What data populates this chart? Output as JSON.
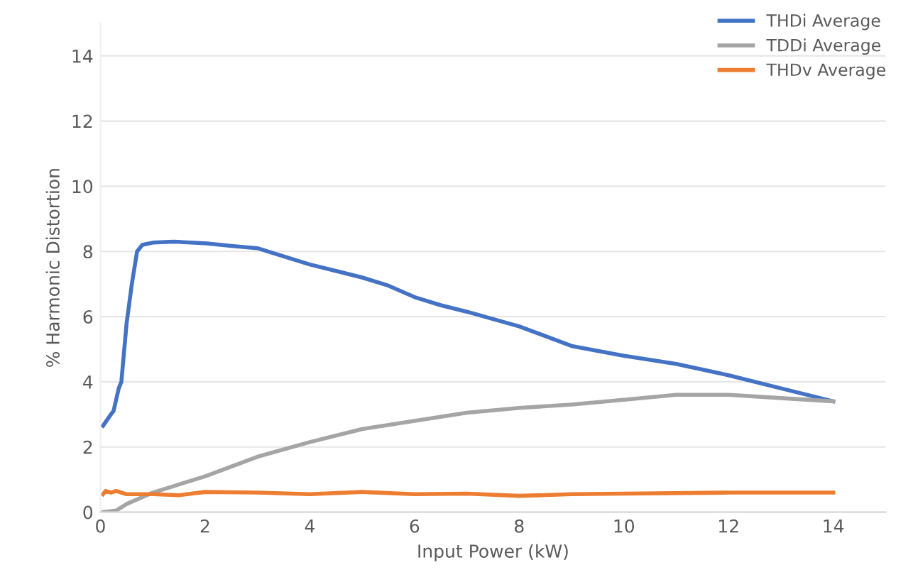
{
  "chart_data": {
    "type": "line",
    "xlabel": "Input Power (kW)",
    "ylabel": "% Harmonic Distortion",
    "xlim": [
      0,
      15
    ],
    "xticks": [
      0,
      2,
      4,
      6,
      8,
      10,
      12,
      14
    ],
    "ylim": [
      0,
      15
    ],
    "yticks": [
      0,
      2,
      4,
      6,
      8,
      10,
      12,
      14
    ],
    "grid": "y",
    "legend": "top right",
    "marker": "none",
    "line_style": "solid",
    "series": [
      {
        "name": "THDi Average",
        "color": "#4472c4",
        "x": [
          0.05,
          0.2,
          0.25,
          0.35,
          0.4,
          0.5,
          0.6,
          0.7,
          0.8,
          1.0,
          1.4,
          2,
          2.5,
          3,
          3.3,
          4,
          4.5,
          5,
          5.5,
          6,
          6.5,
          7,
          8,
          9,
          10,
          11,
          12,
          13,
          14
        ],
        "values": [
          2.65,
          3.0,
          3.1,
          3.8,
          4.0,
          5.8,
          7.0,
          8.0,
          8.2,
          8.27,
          8.3,
          8.25,
          8.17,
          8.1,
          7.95,
          7.6,
          7.4,
          7.2,
          6.95,
          6.6,
          6.35,
          6.15,
          5.7,
          5.1,
          4.8,
          4.55,
          4.2,
          3.8,
          3.4
        ]
      },
      {
        "name": "TDDi Average",
        "color": "#a5a5a5",
        "x": [
          0.05,
          0.3,
          0.5,
          1,
          2,
          3,
          4,
          5,
          6,
          7,
          8,
          9,
          10,
          11,
          12,
          13,
          14
        ],
        "values": [
          0,
          0.05,
          0.25,
          0.6,
          1.1,
          1.7,
          2.15,
          2.55,
          2.8,
          3.05,
          3.2,
          3.3,
          3.45,
          3.6,
          3.6,
          3.5,
          3.4
        ]
      },
      {
        "name": "THDv Average",
        "color": "#ed7d31",
        "x": [
          0.05,
          0.1,
          0.2,
          0.3,
          0.5,
          1,
          1.5,
          2,
          3,
          4,
          5,
          6,
          7,
          8,
          9,
          10,
          12,
          14
        ],
        "values": [
          0.55,
          0.65,
          0.6,
          0.65,
          0.55,
          0.55,
          0.52,
          0.62,
          0.6,
          0.55,
          0.62,
          0.55,
          0.57,
          0.5,
          0.55,
          0.57,
          0.6,
          0.6
        ]
      }
    ]
  }
}
